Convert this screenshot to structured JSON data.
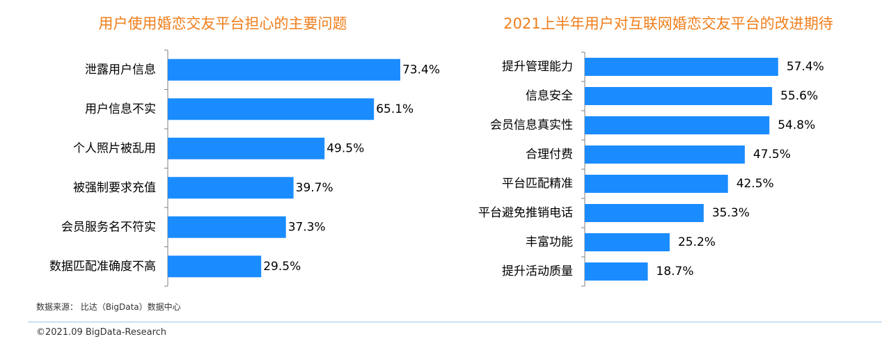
{
  "chart_data": [
    {
      "type": "bar",
      "orientation": "horizontal",
      "title": "用户使用婚恋交友平台担心的主要问题",
      "categories": [
        "泄露用户信息",
        "用户信息不实",
        "个人照片被乱用",
        "被强制要求充值",
        "会员服务名不符实",
        "数据匹配准确度不高"
      ],
      "values": [
        73.4,
        65.1,
        49.5,
        39.7,
        37.3,
        29.5
      ],
      "value_labels": [
        "73.4%",
        "65.1%",
        "49.5%",
        "39.7%",
        "37.3%",
        "29.5%"
      ],
      "xlim": [
        0,
        100
      ],
      "grid": false,
      "bar_color": "#1a8cff"
    },
    {
      "type": "bar",
      "orientation": "horizontal",
      "title": "2021上半年用户对互联网婚恋交友平台的改进期待",
      "categories": [
        "提升管理能力",
        "信息安全",
        "会员信息真实性",
        "合理付费",
        "平台匹配精准",
        "平台避免推销电话",
        "丰富功能",
        "提升活动质量"
      ],
      "values": [
        57.4,
        55.6,
        54.8,
        47.5,
        42.5,
        35.3,
        25.2,
        18.7
      ],
      "value_labels": [
        "57.4%",
        "55.6%",
        "54.8%",
        "47.5%",
        "42.5%",
        "35.3%",
        "25.2%",
        "18.7%"
      ],
      "xlim": [
        0,
        100
      ],
      "grid": false,
      "bar_color": "#1a8cff"
    }
  ],
  "footer": {
    "source": "数据来源： 比达（BigData）数据中心",
    "copyright": "©2021.09 BigData-Research"
  },
  "colors": {
    "title": "#f07e1b",
    "bar": "#1a8cff",
    "axis": "#7f7f7f",
    "divider": "#9fc3e7"
  }
}
